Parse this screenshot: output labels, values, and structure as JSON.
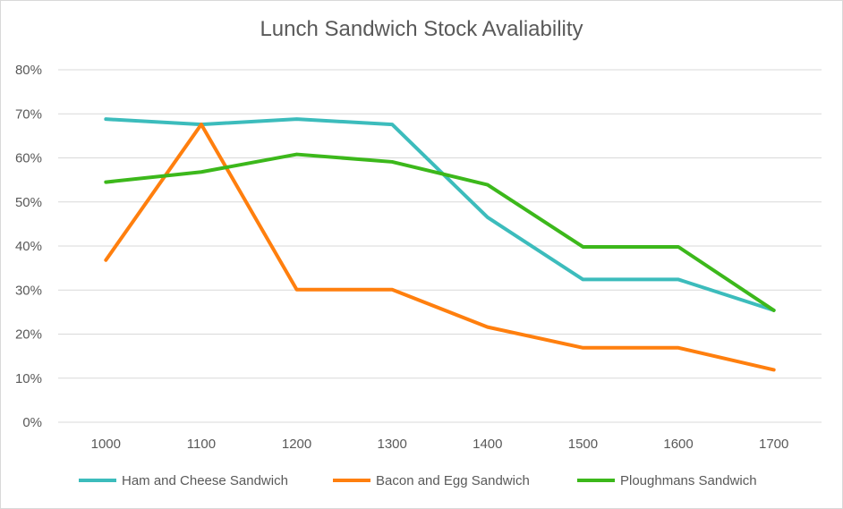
{
  "chart_data": {
    "type": "line",
    "title": "Lunch Sandwich Stock Avaliability",
    "xlabel": "",
    "ylabel": "",
    "x": [
      "1000",
      "1100",
      "1200",
      "1300",
      "1400",
      "1500",
      "1600",
      "1700"
    ],
    "yticks": [
      "0%",
      "10%",
      "20%",
      "30%",
      "40%",
      "50%",
      "60%",
      "70%",
      "80%"
    ],
    "ylim": [
      0,
      80
    ],
    "grid": true,
    "legend_position": "bottom",
    "series": [
      {
        "name": "Ham and Cheese Sandwich",
        "color": "#3cbcbc",
        "values": [
          68.8,
          67.6,
          68.8,
          67.6,
          46.5,
          32.4,
          32.4,
          25.4
        ]
      },
      {
        "name": "Bacon and Egg Sandwich",
        "color": "#ff7f0e",
        "values": [
          36.8,
          67.6,
          30.1,
          30.1,
          21.6,
          16.9,
          16.9,
          11.9
        ]
      },
      {
        "name": "Ploughmans Sandwich",
        "color": "#3cb81b",
        "values": [
          54.5,
          56.8,
          60.8,
          59.1,
          53.9,
          39.8,
          39.8,
          25.4
        ]
      }
    ]
  }
}
